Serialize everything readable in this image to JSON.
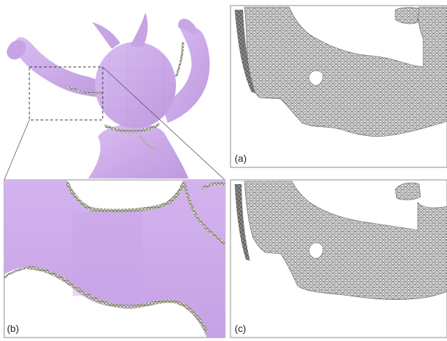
{
  "figure": {
    "panel_labels": {
      "a": "(a)",
      "b": "(b)",
      "c": "(c)"
    }
  },
  "colors": {
    "mesh_fill": "#c9a6e6",
    "mesh_shade": "#b58fd8",
    "mesh_highlight": "#dcc0f2",
    "wire_fill": "#e3e3e3",
    "wire_stroke": "#6a6a6a",
    "panel_border": "#888888",
    "boundary_band": "#9a9a8c"
  },
  "icons": {
    "mesh_render": "purple-mesh-figure",
    "wireframe_render": "triangle-wireframe-surface"
  }
}
